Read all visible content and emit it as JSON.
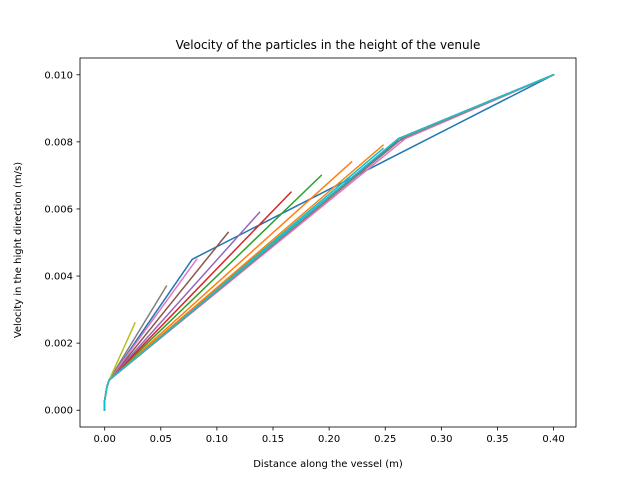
{
  "chart_data": {
    "type": "line",
    "title": "Velocity of the particles in the height of the venule",
    "xlabel": "Distance along the vessel (m)",
    "ylabel": "Velocity in the hight direction (m/s)",
    "xlim": [
      -0.022,
      0.42
    ],
    "ylim": [
      -0.0005,
      0.0105
    ],
    "xticks": [
      0.0,
      0.05,
      0.1,
      0.15,
      0.2,
      0.25,
      0.3,
      0.35,
      0.4
    ],
    "xtick_labels": [
      "0.00",
      "0.05",
      "0.10",
      "0.15",
      "0.20",
      "0.25",
      "0.30",
      "0.35",
      "0.40"
    ],
    "yticks": [
      0.0,
      0.002,
      0.004,
      0.006,
      0.008,
      0.01
    ],
    "ytick_labels": [
      "0.000",
      "0.002",
      "0.004",
      "0.006",
      "0.008",
      "0.010"
    ],
    "grid": false,
    "colors": [
      "#1f77b4",
      "#ff7f0e",
      "#2ca02c",
      "#d62728",
      "#9467bd",
      "#8c564b",
      "#e377c2",
      "#7f7f7f",
      "#bcbd22",
      "#17becf"
    ],
    "series": [
      {
        "x": [
          0.0,
          0.0,
          0.002,
          0.004,
          0.078,
          0.4
        ],
        "y": [
          0.0,
          0.0003,
          0.0007,
          0.0009,
          0.0045,
          0.01
        ]
      },
      {
        "x": [
          0.0,
          0.0,
          0.002,
          0.004,
          0.22
        ],
        "y": [
          0.0,
          0.0003,
          0.0007,
          0.0009,
          0.0074
        ]
      },
      {
        "x": [
          0.0,
          0.0,
          0.002,
          0.004,
          0.193
        ],
        "y": [
          0.0,
          0.0003,
          0.0007,
          0.0009,
          0.007
        ]
      },
      {
        "x": [
          0.0,
          0.0,
          0.002,
          0.004,
          0.166
        ],
        "y": [
          0.0,
          0.0003,
          0.0007,
          0.0009,
          0.0065
        ]
      },
      {
        "x": [
          0.0,
          0.0,
          0.002,
          0.004,
          0.138
        ],
        "y": [
          0.0,
          0.0003,
          0.0007,
          0.0009,
          0.0059
        ]
      },
      {
        "x": [
          0.0,
          0.0,
          0.002,
          0.004,
          0.11
        ],
        "y": [
          0.0,
          0.0003,
          0.0007,
          0.0009,
          0.0053
        ]
      },
      {
        "x": [
          0.0,
          0.0,
          0.002,
          0.004,
          0.082
        ],
        "y": [
          0.0,
          0.0003,
          0.0007,
          0.0009,
          0.0045
        ]
      },
      {
        "x": [
          0.0,
          0.0,
          0.002,
          0.004,
          0.055
        ],
        "y": [
          0.0,
          0.0003,
          0.0007,
          0.0009,
          0.0037
        ]
      },
      {
        "x": [
          0.0,
          0.0,
          0.002,
          0.004,
          0.027
        ],
        "y": [
          0.0,
          0.0003,
          0.0007,
          0.0009,
          0.0026
        ]
      },
      {
        "x": [
          0.0,
          0.0,
          0.002,
          0.004,
          0.248
        ],
        "y": [
          0.0,
          0.0003,
          0.0007,
          0.0009,
          0.0078
        ]
      },
      {
        "x": [
          0.0,
          0.0,
          0.002,
          0.004,
          0.26,
          0.4
        ],
        "y": [
          0.0,
          0.0003,
          0.0007,
          0.0009,
          0.008,
          0.01
        ]
      },
      {
        "x": [
          0.0,
          0.0,
          0.002,
          0.004,
          0.248
        ],
        "y": [
          0.0,
          0.0003,
          0.0007,
          0.0009,
          0.0079
        ]
      },
      {
        "x": [
          0.0,
          0.0,
          0.002,
          0.004,
          0.262,
          0.4
        ],
        "y": [
          0.0,
          0.0003,
          0.0007,
          0.0009,
          0.0081,
          0.01
        ]
      },
      {
        "x": [
          0.0,
          0.0,
          0.002,
          0.004,
          0.262,
          0.4
        ],
        "y": [
          0.0,
          0.0003,
          0.0007,
          0.0009,
          0.0081,
          0.01
        ]
      },
      {
        "x": [
          0.0,
          0.0,
          0.002,
          0.004,
          0.262,
          0.4
        ],
        "y": [
          0.0,
          0.0003,
          0.0007,
          0.0009,
          0.0081,
          0.01
        ]
      },
      {
        "x": [
          0.0,
          0.0,
          0.002,
          0.004,
          0.265,
          0.4
        ],
        "y": [
          0.0,
          0.0003,
          0.0007,
          0.0009,
          0.0081,
          0.01
        ]
      },
      {
        "x": [
          0.0,
          0.0,
          0.002,
          0.004,
          0.268,
          0.4
        ],
        "y": [
          0.0,
          0.0003,
          0.0007,
          0.0009,
          0.0081,
          0.01
        ]
      },
      {
        "x": [
          0.0,
          0.0,
          0.002,
          0.004,
          0.265,
          0.4
        ],
        "y": [
          0.0,
          0.0003,
          0.0007,
          0.0009,
          0.0081,
          0.01
        ]
      },
      {
        "x": [
          0.0,
          0.0,
          0.002,
          0.004,
          0.262,
          0.4
        ],
        "y": [
          0.0,
          0.0003,
          0.0007,
          0.0009,
          0.0081,
          0.01
        ]
      },
      {
        "x": [
          0.0,
          0.0,
          0.002,
          0.004,
          0.262,
          0.4
        ],
        "y": [
          0.0,
          0.0003,
          0.0007,
          0.0009,
          0.0081,
          0.01
        ]
      }
    ]
  }
}
